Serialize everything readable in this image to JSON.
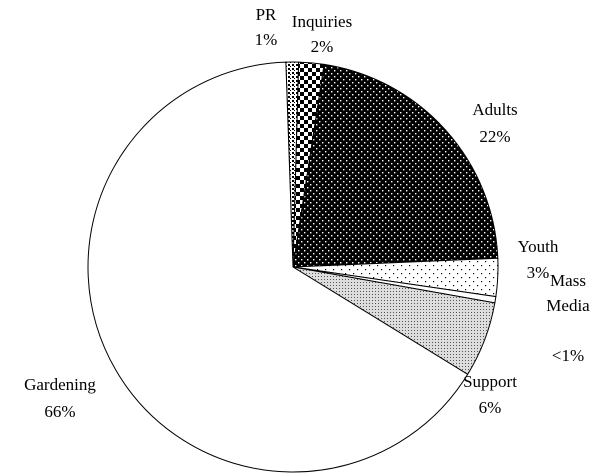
{
  "chart_data": {
    "type": "pie",
    "categories": [
      "PR",
      "Inquiries",
      "Adults",
      "Youth",
      "Mass Media",
      "Support",
      "Gardening"
    ],
    "values": [
      1,
      2,
      22,
      3,
      0.5,
      6,
      66
    ],
    "value_labels": [
      "1%",
      "2%",
      "22%",
      "3%",
      "<1%",
      "6%",
      "66%"
    ]
  }
}
